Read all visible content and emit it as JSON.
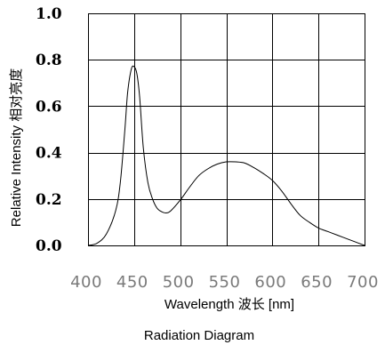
{
  "chart_data": {
    "type": "line",
    "xlabel": "Wavelength 波长  [nm]",
    "ylabel": "Relative Intensity 相对亮度",
    "caption": "Radiation Diagram",
    "xlim": [
      400,
      700
    ],
    "ylim": [
      0.0,
      1.0
    ],
    "x_ticks": [
      "400",
      "450",
      "500",
      "550",
      "600",
      "650",
      "700"
    ],
    "y_ticks": [
      "1.0",
      "0.8",
      "0.6",
      "0.4",
      "0.2",
      "0.0"
    ],
    "grid": true,
    "series": [
      {
        "x": [
          400,
          410,
          420,
          430,
          435,
          440,
          443,
          447,
          450,
          453,
          456,
          460,
          465,
          470,
          475,
          480,
          485,
          490,
          500,
          510,
          520,
          530,
          540,
          550,
          560,
          570,
          580,
          590,
          600,
          610,
          620,
          630,
          640,
          650,
          660,
          670,
          680,
          690,
          700
        ],
        "y": [
          0.0,
          0.01,
          0.05,
          0.15,
          0.27,
          0.5,
          0.66,
          0.76,
          0.77,
          0.74,
          0.64,
          0.42,
          0.27,
          0.2,
          0.16,
          0.145,
          0.14,
          0.15,
          0.195,
          0.25,
          0.3,
          0.33,
          0.35,
          0.36,
          0.36,
          0.355,
          0.335,
          0.31,
          0.28,
          0.235,
          0.18,
          0.13,
          0.1,
          0.075,
          0.06,
          0.045,
          0.03,
          0.015,
          0.0
        ]
      }
    ]
  }
}
